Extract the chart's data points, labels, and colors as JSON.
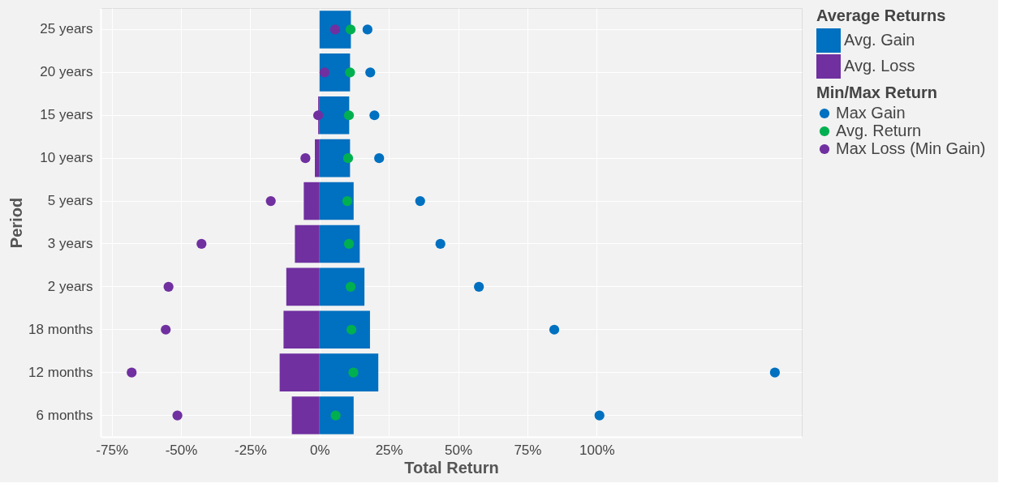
{
  "chart_data": {
    "type": "bar",
    "orientation": "horizontal",
    "xlabel": "Total Return",
    "ylabel": "Period",
    "categories": [
      "25 years",
      "20 years",
      "15 years",
      "10 years",
      "5 years",
      "3 years",
      "2 years",
      "18 months",
      "12 months",
      "6 months"
    ],
    "series": [
      {
        "name": "Avg. Gain",
        "color": "#0070c0",
        "values": [
          11.3,
          11.0,
          10.7,
          11.0,
          12.3,
          14.5,
          16.2,
          18.2,
          21.2,
          12.3
        ]
      },
      {
        "name": "Avg. Loss",
        "color": "#7030a0",
        "values": [
          0,
          0,
          -0.5,
          -1.7,
          -5.7,
          -8.9,
          -12.0,
          -13.0,
          -14.4,
          -10.0
        ]
      },
      {
        "name": "Max Gain",
        "type": "scatter",
        "color": "#0070c0",
        "marker": "circle",
        "values": [
          17.3,
          18.3,
          19.8,
          21.5,
          36.3,
          43.6,
          57.5,
          84.7,
          164.3,
          101
        ]
      },
      {
        "name": "Avg. Return",
        "type": "scatter",
        "color": "#00b050",
        "marker": "circle",
        "values": [
          11.2,
          11.0,
          10.6,
          10.3,
          10.0,
          10.6,
          11.2,
          11.5,
          12.2,
          5.8
        ]
      },
      {
        "name": "Max Loss (Min Gain)",
        "type": "scatter",
        "color": "#7030a0",
        "marker": "circle",
        "values": [
          5.6,
          1.8,
          -0.5,
          -5.1,
          -17.6,
          -42.6,
          -54.5,
          -55.5,
          -67.8,
          -51.3
        ]
      }
    ],
    "legend_title": "Min/Max Return",
    "annotations": [
      "Average Returns"
    ],
    "xlim": [
      -79,
      174
    ],
    "xticks": [
      {
        "value": -75,
        "label": "-75%"
      },
      {
        "value": -50,
        "label": "-50%"
      },
      {
        "value": -25,
        "label": "-25%"
      },
      {
        "value": 0,
        "label": "0%"
      },
      {
        "value": 25,
        "label": "25%"
      },
      {
        "value": 50,
        "label": "50%"
      },
      {
        "value": 75,
        "label": "75%"
      },
      {
        "value": 100,
        "label": "100%"
      }
    ],
    "stacked": true,
    "grid": true,
    "legend": "right"
  }
}
